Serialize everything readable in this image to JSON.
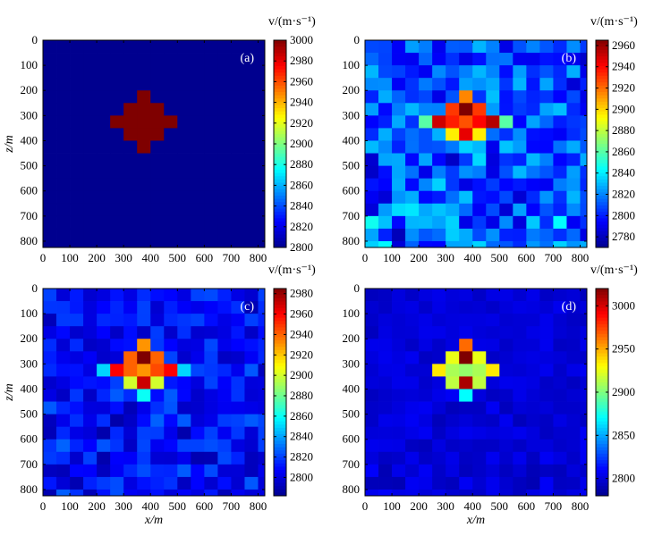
{
  "colormap": [
    "#00008f",
    "#0000ff",
    "#007fff",
    "#00ffff",
    "#7fff7f",
    "#ffff00",
    "#ff7f00",
    "#ff0000",
    "#7f0000"
  ],
  "chart_data": [
    {
      "type": "heatmap",
      "panel_label": "(a)",
      "xlabel": "",
      "ylabel": "z/m",
      "colorbar_title": "v/(m·s⁻¹)",
      "x_ticks": [
        0,
        100,
        200,
        300,
        400,
        500,
        600,
        700,
        800
      ],
      "y_ticks": [
        0,
        100,
        200,
        300,
        400,
        500,
        600,
        700,
        800
      ],
      "xlim": [
        0,
        825
      ],
      "ylim": [
        0,
        825
      ],
      "cell_size": 50,
      "cbar_range": [
        2800,
        3000
      ],
      "cbar_ticks": [
        2800,
        2820,
        2840,
        2860,
        2880,
        2900,
        2920,
        2940,
        2960,
        2980,
        3000
      ],
      "background_value": 2800,
      "anomaly": [
        {
          "x": 375,
          "z": 225,
          "v": 3000
        },
        {
          "x": 325,
          "z": 275,
          "v": 3000
        },
        {
          "x": 375,
          "z": 275,
          "v": 3000
        },
        {
          "x": 425,
          "z": 275,
          "v": 3000
        },
        {
          "x": 275,
          "z": 325,
          "v": 3000
        },
        {
          "x": 325,
          "z": 325,
          "v": 3000
        },
        {
          "x": 375,
          "z": 325,
          "v": 3000
        },
        {
          "x": 425,
          "z": 325,
          "v": 3000
        },
        {
          "x": 475,
          "z": 325,
          "v": 3000
        },
        {
          "x": 325,
          "z": 375,
          "v": 3000
        },
        {
          "x": 375,
          "z": 375,
          "v": 3000
        },
        {
          "x": 425,
          "z": 375,
          "v": 3000
        },
        {
          "x": 375,
          "z": 425,
          "v": 3000
        }
      ],
      "noise_amp": 0
    },
    {
      "type": "heatmap",
      "panel_label": "(b)",
      "xlabel": "",
      "ylabel": "",
      "colorbar_title": "v/(m·s⁻¹)",
      "x_ticks": [
        0,
        100,
        200,
        300,
        400,
        500,
        600,
        700,
        800
      ],
      "y_ticks": [
        0,
        100,
        200,
        300,
        400,
        500,
        600,
        700,
        800
      ],
      "xlim": [
        0,
        825
      ],
      "ylim": [
        0,
        825
      ],
      "cell_size": 50,
      "cbar_range": [
        2770,
        2965
      ],
      "cbar_ticks": [
        2780,
        2800,
        2820,
        2840,
        2860,
        2880,
        2900,
        2920,
        2940,
        2960
      ],
      "background_value": 2810,
      "anomaly": [
        {
          "x": 375,
          "z": 225,
          "v": 2915
        },
        {
          "x": 325,
          "z": 275,
          "v": 2930
        },
        {
          "x": 375,
          "z": 275,
          "v": 2965
        },
        {
          "x": 425,
          "z": 275,
          "v": 2930
        },
        {
          "x": 225,
          "z": 325,
          "v": 2860
        },
        {
          "x": 275,
          "z": 325,
          "v": 2950
        },
        {
          "x": 325,
          "z": 325,
          "v": 2935
        },
        {
          "x": 375,
          "z": 325,
          "v": 2925
        },
        {
          "x": 425,
          "z": 325,
          "v": 2940
        },
        {
          "x": 475,
          "z": 325,
          "v": 2955
        },
        {
          "x": 525,
          "z": 325,
          "v": 2860
        },
        {
          "x": 325,
          "z": 375,
          "v": 2895
        },
        {
          "x": 375,
          "z": 375,
          "v": 2945
        },
        {
          "x": 425,
          "z": 375,
          "v": 2895
        },
        {
          "x": 375,
          "z": 425,
          "v": 2835
        }
      ],
      "noise_amp": 22
    },
    {
      "type": "heatmap",
      "panel_label": "(c)",
      "xlabel": "x/m",
      "ylabel": "z/m",
      "colorbar_title": "v/(m·s⁻¹)",
      "x_ticks": [
        0,
        100,
        200,
        300,
        400,
        500,
        600,
        700,
        800
      ],
      "y_ticks": [
        0,
        100,
        200,
        300,
        400,
        500,
        600,
        700,
        800
      ],
      "xlim": [
        0,
        825
      ],
      "ylim": [
        0,
        825
      ],
      "cell_size": 50,
      "cbar_range": [
        2782,
        2985
      ],
      "cbar_ticks": [
        2800,
        2820,
        2840,
        2860,
        2880,
        2900,
        2920,
        2940,
        2960,
        2980
      ],
      "background_value": 2808,
      "anomaly": [
        {
          "x": 375,
          "z": 225,
          "v": 2930
        },
        {
          "x": 325,
          "z": 275,
          "v": 2940
        },
        {
          "x": 375,
          "z": 275,
          "v": 2985
        },
        {
          "x": 425,
          "z": 275,
          "v": 2940
        },
        {
          "x": 225,
          "z": 325,
          "v": 2850
        },
        {
          "x": 275,
          "z": 325,
          "v": 2960
        },
        {
          "x": 325,
          "z": 325,
          "v": 2940
        },
        {
          "x": 375,
          "z": 325,
          "v": 2930
        },
        {
          "x": 425,
          "z": 325,
          "v": 2945
        },
        {
          "x": 475,
          "z": 325,
          "v": 2960
        },
        {
          "x": 525,
          "z": 325,
          "v": 2850
        },
        {
          "x": 325,
          "z": 375,
          "v": 2900
        },
        {
          "x": 375,
          "z": 375,
          "v": 2970
        },
        {
          "x": 425,
          "z": 375,
          "v": 2900
        },
        {
          "x": 375,
          "z": 425,
          "v": 2860
        }
      ],
      "noise_amp": 14
    },
    {
      "type": "heatmap",
      "panel_label": "(d)",
      "xlabel": "x/m",
      "ylabel": "",
      "colorbar_title": "v/(m·s⁻¹)",
      "x_ticks": [
        0,
        100,
        200,
        300,
        400,
        500,
        600,
        700,
        800
      ],
      "y_ticks": [
        0,
        100,
        200,
        300,
        400,
        500,
        600,
        700,
        800
      ],
      "xlim": [
        0,
        825
      ],
      "ylim": [
        0,
        825
      ],
      "cell_size": 50,
      "cbar_range": [
        2780,
        3020
      ],
      "cbar_ticks": [
        2800,
        2850,
        2900,
        2950,
        3000
      ],
      "background_value": 2800,
      "anomaly": [
        {
          "x": 375,
          "z": 225,
          "v": 2965
        },
        {
          "x": 325,
          "z": 275,
          "v": 2925
        },
        {
          "x": 375,
          "z": 275,
          "v": 3020
        },
        {
          "x": 425,
          "z": 275,
          "v": 2925
        },
        {
          "x": 275,
          "z": 325,
          "v": 2935
        },
        {
          "x": 325,
          "z": 325,
          "v": 2910
        },
        {
          "x": 375,
          "z": 325,
          "v": 2905
        },
        {
          "x": 425,
          "z": 325,
          "v": 2910
        },
        {
          "x": 475,
          "z": 325,
          "v": 2935
        },
        {
          "x": 325,
          "z": 375,
          "v": 2915
        },
        {
          "x": 375,
          "z": 375,
          "v": 3010
        },
        {
          "x": 425,
          "z": 375,
          "v": 2915
        },
        {
          "x": 375,
          "z": 425,
          "v": 2870
        }
      ],
      "noise_amp": 6
    }
  ]
}
